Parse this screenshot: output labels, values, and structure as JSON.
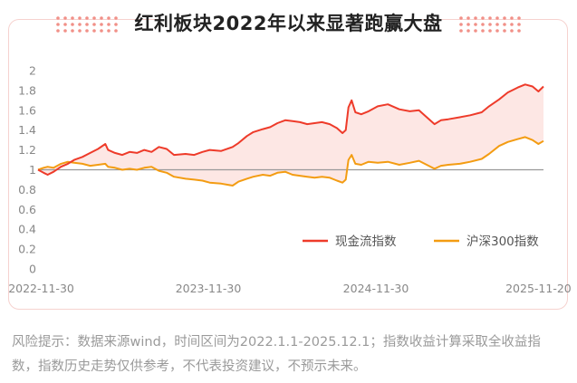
{
  "title": "红利板块2022年以来显著跑赢大盘",
  "footnote": "风险提示：数据来源wind，时间区间为2022.1.1-2025.12.1；指数收益计算采取全收益指数，指数历史走势仅供参考，不代表投资建议，不预示未来。",
  "colors": {
    "series1": "#ee3b2a",
    "series2": "#f39c12",
    "area": "#fde4e1",
    "baseline": "#999999",
    "card_border": "#f6d2cf",
    "dots": "#f19088"
  },
  "chart_data": {
    "type": "line",
    "title": "红利板块2022年以来显著跑赢大盘",
    "ylim": [
      0,
      2
    ],
    "yticks": [
      "0",
      "0.2",
      "0.4",
      "0.6",
      "0.8",
      "1",
      "1.2",
      "1.4",
      "1.6",
      "1.8",
      "2"
    ],
    "x_range": [
      "2022-11-23",
      "2025-12-01"
    ],
    "xticks": [
      "2022-11-30",
      "2023-11-30",
      "2024-11-30",
      "2025-11-20"
    ],
    "baseline": 1,
    "legend_position": "bottom-right",
    "series": [
      {
        "name": "现金流指数",
        "points": [
          [
            "2022-11-23",
            1.0
          ],
          [
            "2022-12-05",
            0.97
          ],
          [
            "2022-12-14",
            0.95
          ],
          [
            "2022-12-27",
            0.98
          ],
          [
            "2023-01-12",
            1.03
          ],
          [
            "2023-01-27",
            1.06
          ],
          [
            "2023-02-10",
            1.1
          ],
          [
            "2023-02-28",
            1.13
          ],
          [
            "2023-03-17",
            1.17
          ],
          [
            "2023-04-03",
            1.21
          ],
          [
            "2023-04-19",
            1.26
          ],
          [
            "2023-04-25",
            1.2
          ],
          [
            "2023-05-10",
            1.17
          ],
          [
            "2023-05-26",
            1.15
          ],
          [
            "2023-06-11",
            1.18
          ],
          [
            "2023-06-27",
            1.17
          ],
          [
            "2023-07-13",
            1.2
          ],
          [
            "2023-07-29",
            1.18
          ],
          [
            "2023-08-14",
            1.23
          ],
          [
            "2023-08-31",
            1.21
          ],
          [
            "2023-09-16",
            1.15
          ],
          [
            "2023-10-11",
            1.16
          ],
          [
            "2023-10-30",
            1.15
          ],
          [
            "2023-11-17",
            1.18
          ],
          [
            "2023-12-03",
            1.2
          ],
          [
            "2023-12-28",
            1.19
          ],
          [
            "2024-01-22",
            1.23
          ],
          [
            "2024-02-04",
            1.27
          ],
          [
            "2024-02-22",
            1.34
          ],
          [
            "2024-03-07",
            1.38
          ],
          [
            "2024-03-28",
            1.41
          ],
          [
            "2024-04-13",
            1.43
          ],
          [
            "2024-04-29",
            1.47
          ],
          [
            "2024-05-16",
            1.5
          ],
          [
            "2024-06-01",
            1.49
          ],
          [
            "2024-06-17",
            1.48
          ],
          [
            "2024-07-03",
            1.46
          ],
          [
            "2024-07-19",
            1.47
          ],
          [
            "2024-08-04",
            1.48
          ],
          [
            "2024-08-21",
            1.46
          ],
          [
            "2024-09-06",
            1.42
          ],
          [
            "2024-09-18",
            1.37
          ],
          [
            "2024-09-25",
            1.4
          ],
          [
            "2024-10-01",
            1.63
          ],
          [
            "2024-10-08",
            1.7
          ],
          [
            "2024-10-16",
            1.58
          ],
          [
            "2024-10-29",
            1.56
          ],
          [
            "2024-11-14",
            1.59
          ],
          [
            "2024-12-04",
            1.64
          ],
          [
            "2024-12-26",
            1.66
          ],
          [
            "2025-01-20",
            1.61
          ],
          [
            "2025-02-12",
            1.59
          ],
          [
            "2025-03-04",
            1.6
          ],
          [
            "2025-04-07",
            1.46
          ],
          [
            "2025-04-21",
            1.5
          ],
          [
            "2025-05-07",
            1.51
          ],
          [
            "2025-06-01",
            1.53
          ],
          [
            "2025-06-24",
            1.55
          ],
          [
            "2025-07-19",
            1.58
          ],
          [
            "2025-08-04",
            1.64
          ],
          [
            "2025-08-26",
            1.71
          ],
          [
            "2025-09-14",
            1.78
          ],
          [
            "2025-10-06",
            1.83
          ],
          [
            "2025-10-22",
            1.86
          ],
          [
            "2025-11-07",
            1.84
          ],
          [
            "2025-11-20",
            1.79
          ],
          [
            "2025-12-01",
            1.84
          ]
        ]
      },
      {
        "name": "沪深300指数",
        "points": [
          [
            "2022-11-23",
            1.0
          ],
          [
            "2022-12-05",
            1.02
          ],
          [
            "2022-12-14",
            1.03
          ],
          [
            "2022-12-27",
            1.02
          ],
          [
            "2023-01-12",
            1.06
          ],
          [
            "2023-01-27",
            1.08
          ],
          [
            "2023-02-10",
            1.07
          ],
          [
            "2023-02-28",
            1.06
          ],
          [
            "2023-03-17",
            1.04
          ],
          [
            "2023-04-03",
            1.05
          ],
          [
            "2023-04-19",
            1.06
          ],
          [
            "2023-04-25",
            1.03
          ],
          [
            "2023-05-10",
            1.02
          ],
          [
            "2023-05-26",
            1.0
          ],
          [
            "2023-06-11",
            1.01
          ],
          [
            "2023-06-27",
            1.0
          ],
          [
            "2023-07-13",
            1.02
          ],
          [
            "2023-07-29",
            1.03
          ],
          [
            "2023-08-14",
            0.99
          ],
          [
            "2023-08-31",
            0.97
          ],
          [
            "2023-09-16",
            0.93
          ],
          [
            "2023-10-11",
            0.91
          ],
          [
            "2023-10-30",
            0.9
          ],
          [
            "2023-11-17",
            0.89
          ],
          [
            "2023-12-03",
            0.87
          ],
          [
            "2023-12-28",
            0.86
          ],
          [
            "2024-01-22",
            0.84
          ],
          [
            "2024-02-04",
            0.88
          ],
          [
            "2024-02-22",
            0.91
          ],
          [
            "2024-03-07",
            0.93
          ],
          [
            "2024-03-28",
            0.95
          ],
          [
            "2024-04-13",
            0.94
          ],
          [
            "2024-04-29",
            0.97
          ],
          [
            "2024-05-16",
            0.98
          ],
          [
            "2024-06-01",
            0.95
          ],
          [
            "2024-06-17",
            0.94
          ],
          [
            "2024-07-03",
            0.93
          ],
          [
            "2024-07-19",
            0.92
          ],
          [
            "2024-08-04",
            0.93
          ],
          [
            "2024-08-21",
            0.92
          ],
          [
            "2024-09-06",
            0.89
          ],
          [
            "2024-09-18",
            0.87
          ],
          [
            "2024-09-25",
            0.9
          ],
          [
            "2024-10-01",
            1.1
          ],
          [
            "2024-10-08",
            1.15
          ],
          [
            "2024-10-16",
            1.06
          ],
          [
            "2024-10-29",
            1.05
          ],
          [
            "2024-11-14",
            1.08
          ],
          [
            "2024-12-04",
            1.07
          ],
          [
            "2024-12-26",
            1.08
          ],
          [
            "2025-01-20",
            1.05
          ],
          [
            "2025-02-12",
            1.07
          ],
          [
            "2025-03-04",
            1.09
          ],
          [
            "2025-04-07",
            1.01
          ],
          [
            "2025-04-21",
            1.04
          ],
          [
            "2025-05-07",
            1.05
          ],
          [
            "2025-06-01",
            1.06
          ],
          [
            "2025-06-24",
            1.08
          ],
          [
            "2025-07-19",
            1.11
          ],
          [
            "2025-08-04",
            1.16
          ],
          [
            "2025-08-26",
            1.24
          ],
          [
            "2025-09-14",
            1.28
          ],
          [
            "2025-10-06",
            1.31
          ],
          [
            "2025-10-22",
            1.33
          ],
          [
            "2025-11-07",
            1.3
          ],
          [
            "2025-11-20",
            1.26
          ],
          [
            "2025-12-01",
            1.29
          ]
        ]
      }
    ]
  }
}
